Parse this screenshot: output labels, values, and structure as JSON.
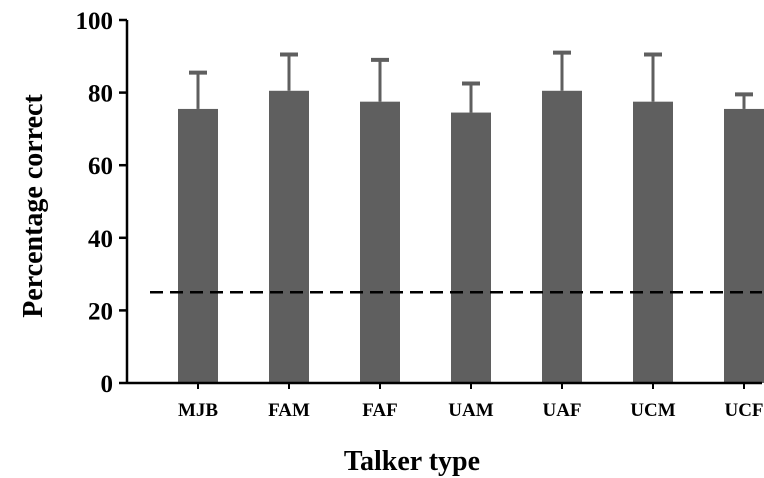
{
  "chart_data": {
    "type": "bar",
    "categories": [
      "MJB",
      "FAM",
      "FAF",
      "UAM",
      "UAF",
      "UCM",
      "UCF"
    ],
    "values": [
      75.5,
      80.5,
      77.5,
      74.5,
      80.5,
      77.5,
      75.5
    ],
    "error_upper": [
      10,
      10,
      11.5,
      8,
      10.5,
      13,
      4
    ],
    "reference_line": 25,
    "xlabel": "Talker type",
    "ylabel": "Percentage correct",
    "ylim": [
      0,
      100
    ],
    "yticks": [
      0,
      20,
      40,
      60,
      80,
      100
    ],
    "grid": false,
    "colors": {
      "bar": "#5f5f5f",
      "axis": "#000000",
      "reference": "#000000"
    }
  }
}
